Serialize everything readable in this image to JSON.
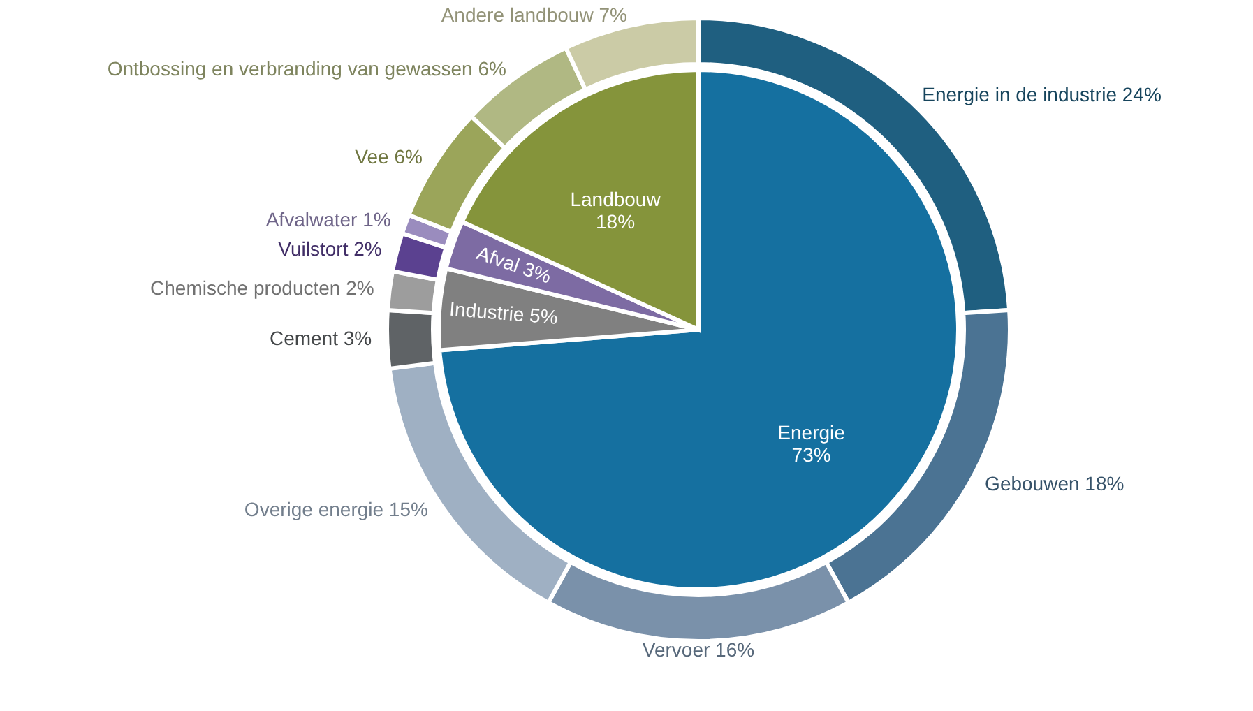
{
  "chart_data": {
    "type": "pie",
    "categories": [
      "Energie",
      "Industrie",
      "Afval",
      "Landbouw",
      "Energie in de industrie",
      "Gebouwen",
      "Vervoer",
      "Overige energie",
      "Cement",
      "Chemische producten",
      "Vuilstort",
      "Afvalwater",
      "Vee",
      "Ontbossing en verbranding van gewassen",
      "Andere landbouw"
    ],
    "colors": [
      "#1570a0",
      "#808080",
      "#7d6ba3",
      "#85943b",
      "#1f5f80",
      "#4b7393",
      "#7a91aa",
      "#9fb0c3",
      "#5f6366",
      "#9d9d9d",
      "#5b4190",
      "#9a8cbe",
      "#9ba55a",
      "#b0b883",
      "#cbcba6"
    ],
    "series": [
      {
        "type": "pie",
        "values": [
          73,
          5,
          3,
          18,
          null,
          null,
          null,
          null,
          null,
          null,
          null,
          null,
          null,
          null,
          null
        ],
        "value_labels": [
          "73%",
          "5%",
          "3%",
          "18%",
          null,
          null,
          null,
          null,
          null,
          null,
          null,
          null,
          null,
          null,
          null
        ]
      },
      {
        "type": "donut",
        "values": [
          null,
          null,
          null,
          null,
          24,
          18,
          16,
          15,
          3,
          2,
          2,
          1,
          6,
          6,
          7
        ],
        "value_labels": [
          null,
          null,
          null,
          null,
          "24%",
          "18%",
          "16%",
          "15%",
          "3%",
          "2%",
          "2%",
          "1%",
          "6%",
          "6%",
          "7%"
        ]
      }
    ]
  }
}
